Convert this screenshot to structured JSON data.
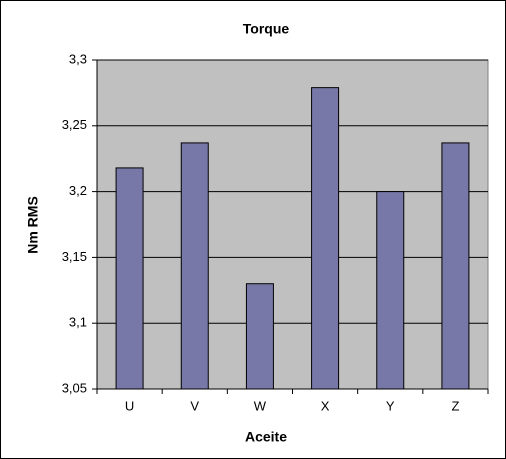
{
  "chart_data": {
    "type": "bar",
    "title": "Torque",
    "x_label": "Aceite",
    "y_label": "Nm RMS",
    "categories": [
      "U",
      "V",
      "W",
      "X",
      "Y",
      "Z"
    ],
    "values": [
      3.218,
      3.237,
      3.13,
      3.279,
      3.2,
      3.237
    ],
    "color": "#7878a8",
    "ylim": [
      3.05,
      3.3
    ],
    "yticks": [
      {
        "value": 3.05,
        "label": "3,05"
      },
      {
        "value": 3.1,
        "label": "3,1"
      },
      {
        "value": 3.15,
        "label": "3,15"
      },
      {
        "value": 3.2,
        "label": "3,2"
      },
      {
        "value": 3.25,
        "label": "3,25"
      },
      {
        "value": 3.3,
        "label": "3,3"
      }
    ],
    "grid": true
  }
}
